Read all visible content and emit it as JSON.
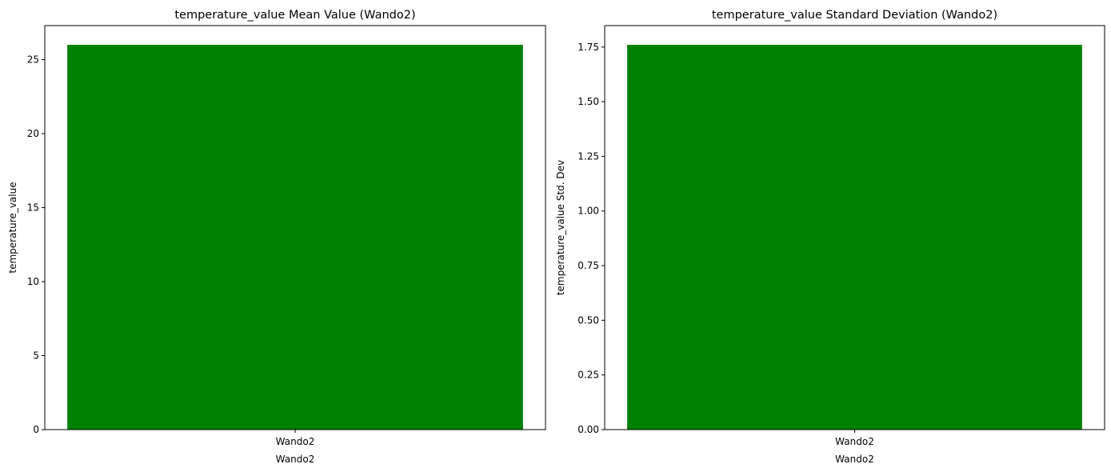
{
  "chart_data": [
    {
      "type": "bar",
      "title": "temperature_value Mean Value (Wando2)",
      "categories": [
        "Wando2"
      ],
      "values": [
        26.0
      ],
      "xlabel": "Wando2",
      "ylabel": "temperature_value",
      "ylim": [
        0,
        27.3
      ],
      "yticks": [
        0,
        5,
        10,
        15,
        20,
        25
      ],
      "ytick_labels": [
        "0",
        "5",
        "10",
        "15",
        "20",
        "25"
      ],
      "bar_color": "#008000",
      "grid": false
    },
    {
      "type": "bar",
      "title": "temperature_value Standard Deviation (Wando2)",
      "categories": [
        "Wando2"
      ],
      "values": [
        1.76
      ],
      "xlabel": "Wando2",
      "ylabel": "temperature_value Std. Dev",
      "ylim": [
        0,
        1.848
      ],
      "yticks": [
        0,
        0.25,
        0.5,
        0.75,
        1.0,
        1.25,
        1.5,
        1.75
      ],
      "ytick_labels": [
        "0.00",
        "0.25",
        "0.50",
        "0.75",
        "1.00",
        "1.25",
        "1.50",
        "1.75"
      ],
      "bar_color": "#008000",
      "grid": false
    }
  ]
}
